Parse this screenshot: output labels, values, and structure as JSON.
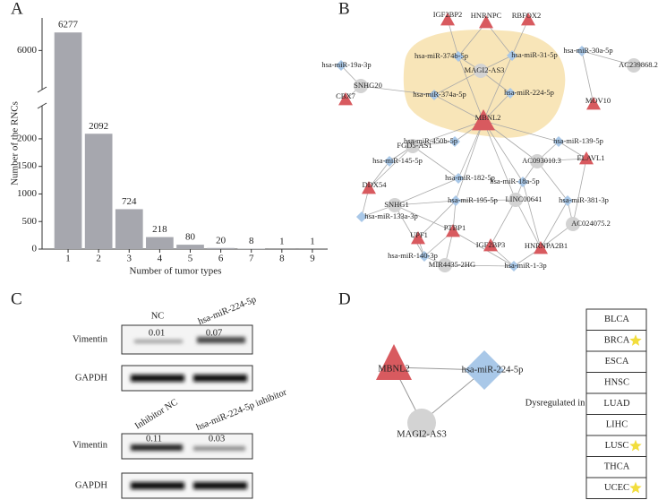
{
  "panels": {
    "a": "A",
    "b": "B",
    "c": "C",
    "d": "D"
  },
  "chart_data": {
    "type": "bar",
    "categories": [
      "1",
      "2",
      "3",
      "4",
      "5",
      "6",
      "7",
      "8",
      "9"
    ],
    "values": [
      6277,
      2092,
      724,
      218,
      80,
      20,
      8,
      1,
      1
    ],
    "color": "#a6a7ae",
    "ylim": [
      0,
      6500
    ],
    "ybreak": [
      2600,
      5400
    ],
    "yticks": [
      0,
      500,
      1000,
      1500,
      2000,
      6000
    ],
    "ylabel": "Number of the RNCs",
    "xlabel": "Number of tumor types"
  },
  "network": {
    "nodes": [
      {
        "label": "IGF2BP2",
        "shape": "triangle"
      },
      {
        "label": "HNRNPC",
        "shape": "triangle"
      },
      {
        "label": "RBFOX2",
        "shape": "triangle"
      },
      {
        "label": "CBX7",
        "shape": "triangle"
      },
      {
        "label": "MOV10",
        "shape": "triangle"
      },
      {
        "label": "MBNL2",
        "shape": "triangle"
      },
      {
        "label": "ELAVL1",
        "shape": "triangle"
      },
      {
        "label": "DDX54",
        "shape": "triangle"
      },
      {
        "label": "UPF1",
        "shape": "triangle"
      },
      {
        "label": "PTBP1",
        "shape": "triangle"
      },
      {
        "label": "IGF2BP3",
        "shape": "triangle"
      },
      {
        "label": "HNRNPA2B1",
        "shape": "triangle"
      },
      {
        "label": "hsa-miR-19a-3p",
        "shape": "diamond"
      },
      {
        "label": "hsa-miR-374b-5p",
        "shape": "diamond"
      },
      {
        "label": "hsa-miR-31-5p",
        "shape": "diamond"
      },
      {
        "label": "hsa-miR-30a-5p",
        "shape": "diamond"
      },
      {
        "label": "hsa-miR-374a-5p",
        "shape": "diamond"
      },
      {
        "label": "hsa-miR-224-5p",
        "shape": "diamond"
      },
      {
        "label": "hsa-miR-450b-5p",
        "shape": "diamond"
      },
      {
        "label": "hsa-miR-139-5p",
        "shape": "diamond"
      },
      {
        "label": "hsa-miR-145-5p",
        "shape": "diamond"
      },
      {
        "label": "hsa-miR-182-5p",
        "shape": "diamond"
      },
      {
        "label": "hsa-miR-18a-5p",
        "shape": "diamond"
      },
      {
        "label": "hsa-miR-195-5p",
        "shape": "diamond"
      },
      {
        "label": "hsa-miR-381-3p",
        "shape": "diamond"
      },
      {
        "label": "hsa-miR-133a-3p",
        "shape": "diamond"
      },
      {
        "label": "hsa-miR-140-3p",
        "shape": "diamond"
      },
      {
        "label": "hsa-miR-1-3p",
        "shape": "diamond"
      },
      {
        "label": "SNHG20",
        "shape": "circle"
      },
      {
        "label": "MAGI2-AS3",
        "shape": "circle"
      },
      {
        "label": "AC239868.2",
        "shape": "circle"
      },
      {
        "label": "AC093010.3",
        "shape": "circle"
      },
      {
        "label": "FGD5-AS1",
        "shape": "circle"
      },
      {
        "label": "SNHG1",
        "shape": "circle"
      },
      {
        "label": "LINC00641",
        "shape": "circle"
      },
      {
        "label": "AC024075.2",
        "shape": "circle"
      },
      {
        "label": "MIR4435-2HG",
        "shape": "circle"
      }
    ]
  },
  "blots": {
    "top": {
      "lanes": [
        "NC",
        "hsa-miR-224-5p"
      ],
      "protein": "Vimentin",
      "ratios": [
        "0.01",
        "0.07"
      ],
      "control": "GAPDH"
    },
    "bottom": {
      "lanes": [
        "Inhibitor NC",
        "hsa-miR-224-5p inhibitor"
      ],
      "protein": "Vimentin",
      "ratios": [
        "0.11",
        "0.03"
      ],
      "control": "GAPDH"
    }
  },
  "panel_d": {
    "nodes": [
      "MBNL2",
      "hsa-miR-224-5p",
      "MAGI2-AS3"
    ],
    "caption": "Dysregulated in",
    "table": {
      "rows": [
        {
          "label": "BLCA",
          "star": false
        },
        {
          "label": "BRCA",
          "star": true
        },
        {
          "label": "ESCA",
          "star": false
        },
        {
          "label": "HNSC",
          "star": false
        },
        {
          "label": "LUAD",
          "star": false
        },
        {
          "label": "LIHC",
          "star": false
        },
        {
          "label": "LUSC",
          "star": true
        },
        {
          "label": "THCA",
          "star": false
        },
        {
          "label": "UCEC",
          "star": true
        }
      ]
    }
  }
}
